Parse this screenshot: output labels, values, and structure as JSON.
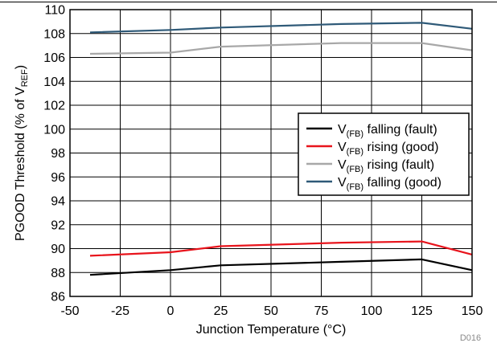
{
  "chart_data": {
    "type": "line",
    "title": "",
    "xlabel": "Junction Temperature (°C)",
    "ylabel": {
      "main": "PGOOD Threshold (% of V",
      "sub": "REF",
      "tail": ")"
    },
    "xlim": [
      -50,
      150
    ],
    "ylim": [
      86,
      110
    ],
    "xticks": [
      -50,
      -25,
      0,
      25,
      50,
      75,
      100,
      125,
      150
    ],
    "yticks": [
      86,
      88,
      90,
      92,
      94,
      96,
      98,
      100,
      102,
      104,
      106,
      108,
      110
    ],
    "grid": true,
    "legend_position": "center-right",
    "figure_id": "D016",
    "series": [
      {
        "name": "V(FB) falling (fault)",
        "label": {
          "pre": "V",
          "sub": "(FB)",
          "post": " falling (fault)"
        },
        "color": "#000000",
        "x": [
          -40,
          0,
          25,
          85,
          125,
          150
        ],
        "y": [
          87.8,
          88.2,
          88.6,
          88.9,
          89.1,
          88.2
        ]
      },
      {
        "name": "V(FB) rising (good)",
        "label": {
          "pre": "V",
          "sub": "(FB)",
          "post": " rising (good)"
        },
        "color": "#e8141c",
        "x": [
          -40,
          0,
          25,
          85,
          125,
          150
        ],
        "y": [
          89.4,
          89.7,
          90.2,
          90.5,
          90.6,
          89.5
        ]
      },
      {
        "name": "V(FB) rising (fault)",
        "label": {
          "pre": "V",
          "sub": "(FB)",
          "post": " rising (fault)"
        },
        "color": "#a8a8a8",
        "x": [
          -40,
          0,
          25,
          85,
          125,
          150
        ],
        "y": [
          106.3,
          106.4,
          106.9,
          107.2,
          107.2,
          106.6
        ]
      },
      {
        "name": "V(FB) falling (good)",
        "label": {
          "pre": "V",
          "sub": "(FB)",
          "post": " falling (good)"
        },
        "color": "#2f5a78",
        "x": [
          -40,
          0,
          25,
          85,
          125,
          150
        ],
        "y": [
          108.1,
          108.3,
          108.5,
          108.8,
          108.9,
          108.4
        ]
      }
    ]
  }
}
